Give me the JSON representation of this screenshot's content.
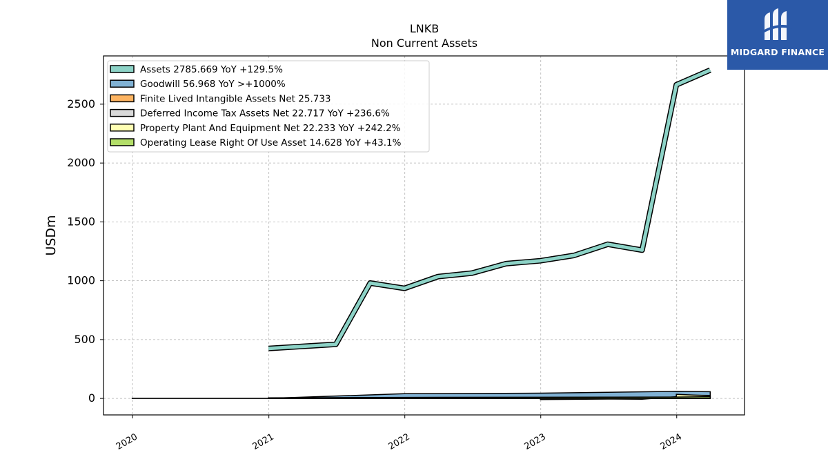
{
  "brand": {
    "name": "MIDGARD FINANCE",
    "logo_icon": "midgard-logo-icon",
    "color": "#2b59a8"
  },
  "chart_data": {
    "type": "area",
    "title": "LNKB",
    "subtitle": "Non Current  Assets",
    "ylabel": "USDm",
    "xlabel": "",
    "ylim": [
      -140,
      2910
    ],
    "xlim": [
      "2019-10-15",
      "2024-07-01"
    ],
    "yticks": [
      0,
      500,
      1000,
      1500,
      2000,
      2500
    ],
    "xticks": [
      "2020",
      "2021",
      "2022",
      "2023",
      "2024"
    ],
    "grid": true,
    "legend_position": "top-left",
    "series": [
      {
        "name": "Assets",
        "legend": "Assets  2785.669 YoY +129.5%",
        "color": "#8dd3c7",
        "kind": "line",
        "points": [
          [
            "2020-12-31",
            425
          ],
          [
            "2021-06-30",
            460
          ],
          [
            "2021-09-30",
            980
          ],
          [
            "2021-12-31",
            935
          ],
          [
            "2022-03-31",
            1035
          ],
          [
            "2022-06-30",
            1065
          ],
          [
            "2022-09-30",
            1145
          ],
          [
            "2022-12-31",
            1170
          ],
          [
            "2023-03-31",
            1215
          ],
          [
            "2023-06-30",
            1310
          ],
          [
            "2023-09-30",
            1260
          ],
          [
            "2023-12-31",
            2665
          ],
          [
            "2024-03-31",
            2790
          ]
        ]
      },
      {
        "name": "Goodwill",
        "legend": "Goodwill  56.968 YoY >+1000%",
        "color": "#80b1d3",
        "kind": "area",
        "points": [
          [
            "2019-12-31",
            1
          ],
          [
            "2020-12-31",
            1
          ],
          [
            "2021-12-31",
            40
          ],
          [
            "2022-12-31",
            45
          ],
          [
            "2023-12-31",
            60
          ],
          [
            "2024-03-31",
            57
          ]
        ]
      },
      {
        "name": "Finite Lived Intangible Assets Net",
        "legend": "Finite Lived Intangible Assets Net  25.733",
        "color": "#fdb462",
        "kind": "area",
        "points": [
          [
            "2023-12-31",
            27
          ],
          [
            "2024-03-31",
            25.7
          ]
        ]
      },
      {
        "name": "Deferred Income Tax Assets Net",
        "legend": "Deferred Income Tax Assets Net  22.717 YoY +236.6%",
        "color": "#d9d9d9",
        "kind": "area",
        "points": [
          [
            "2022-12-31",
            -10
          ],
          [
            "2023-06-30",
            -5
          ],
          [
            "2023-09-30",
            -6
          ],
          [
            "2023-12-31",
            15
          ],
          [
            "2024-03-31",
            22.7
          ]
        ]
      },
      {
        "name": "Property Plant And Equipment Net",
        "legend": "Property Plant And Equipment Net  22.233 YoY +242.2%",
        "color": "#ffffb3",
        "kind": "area",
        "points": [
          [
            "2023-12-31",
            35
          ],
          [
            "2024-03-31",
            22.2
          ]
        ]
      },
      {
        "name": "Operating Lease Right Of Use Asset",
        "legend": "Operating Lease Right Of Use Asset  14.628 YoY +43.1%",
        "color": "#b3de69",
        "kind": "area",
        "points": [
          [
            "2020-12-31",
            5
          ],
          [
            "2021-12-31",
            9
          ],
          [
            "2022-12-31",
            10
          ],
          [
            "2023-06-30",
            10.5
          ],
          [
            "2023-12-31",
            12
          ],
          [
            "2024-03-31",
            14.6
          ]
        ]
      }
    ]
  }
}
